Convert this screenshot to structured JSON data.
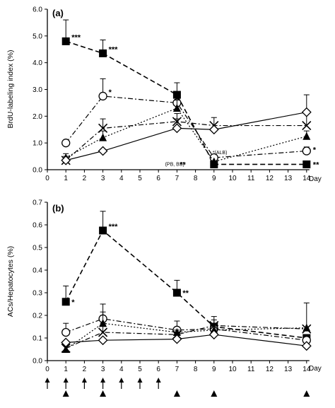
{
  "chart_data": [
    {
      "type": "line",
      "panel_label": "(a)",
      "ylabel": "BrdU-labeling index (%)",
      "xlabel": "Day",
      "ylim": [
        0,
        6.0
      ],
      "yticks": [
        "0.0",
        "1.0",
        "2.0",
        "3.0",
        "4.0",
        "5.0",
        "6.0"
      ],
      "xlim": [
        0,
        14
      ],
      "xticks": [
        "0",
        "1",
        "2",
        "3",
        "4",
        "5",
        "6",
        "7",
        "8",
        "9",
        "10",
        "11",
        "12",
        "13",
        "14"
      ],
      "grid": false,
      "series": [
        {
          "marker": "square",
          "linestyle": "dashed",
          "x": [
            1,
            3,
            7,
            9,
            14
          ],
          "y": [
            4.8,
            4.35,
            2.8,
            0.2,
            0.2
          ],
          "err": [
            0.8,
            0.5,
            0.45,
            0,
            0
          ]
        },
        {
          "marker": "circle",
          "linestyle": "dashdot",
          "x": [
            1,
            3,
            7,
            9,
            14
          ],
          "y": [
            1.0,
            2.75,
            2.5,
            0.45,
            0.7
          ],
          "err": [
            0,
            0.65,
            0,
            0,
            0.15
          ]
        },
        {
          "marker": "triangle",
          "linestyle": "dotted",
          "x": [
            1,
            3,
            7,
            9,
            14
          ],
          "y": [
            0.45,
            1.2,
            2.3,
            0.3,
            1.25
          ],
          "err": [
            0.15,
            0.25,
            0.3,
            0,
            0.2
          ]
        },
        {
          "marker": "cross",
          "linestyle": "dashdot",
          "x": [
            1,
            3,
            7,
            9,
            14
          ],
          "y": [
            0.35,
            1.55,
            1.8,
            1.65,
            1.65
          ],
          "err": [
            0.15,
            0.35,
            0.3,
            0.3,
            0.45
          ]
        },
        {
          "marker": "diamond",
          "linestyle": "solid",
          "x": [
            1,
            3,
            7,
            9,
            14
          ],
          "y": [
            0.35,
            0.7,
            1.55,
            1.5,
            2.15
          ],
          "err": [
            0,
            0,
            0.35,
            0,
            0.65
          ]
        }
      ],
      "annotations": [
        {
          "text": "***",
          "x": 1,
          "y": 4.8
        },
        {
          "text": "***",
          "x": 3,
          "y": 4.35
        },
        {
          "text": "*",
          "x": 3,
          "y": 2.75
        },
        {
          "text": "*(ALB)",
          "x": 9,
          "y": 0.45
        },
        {
          "text": "(PB, BS)",
          "x": 9,
          "y": 0.2
        },
        {
          "text": "**",
          "x": 9,
          "y": 0.2
        },
        {
          "text": "**",
          "x": 14,
          "y": 0.2
        },
        {
          "text": "*",
          "x": 14,
          "y": 0.7
        }
      ]
    },
    {
      "type": "line",
      "panel_label": "(b)",
      "ylabel": "ACs/Hepatocytes (%)",
      "xlabel": "Day",
      "ylim": [
        0,
        0.7
      ],
      "yticks": [
        "0.0",
        "0.1",
        "0.2",
        "0.3",
        "0.4",
        "0.5",
        "0.6",
        "0.7"
      ],
      "xlim": [
        0,
        14
      ],
      "xticks": [
        "0",
        "1",
        "2",
        "3",
        "4",
        "5",
        "6",
        "7",
        "8",
        "9",
        "10",
        "11",
        "12",
        "13",
        "14"
      ],
      "grid": false,
      "series": [
        {
          "marker": "square",
          "linestyle": "dashed",
          "x": [
            1,
            3,
            7,
            9,
            14
          ],
          "y": [
            0.26,
            0.575,
            0.3,
            0.15,
            0.1
          ],
          "err": [
            0.07,
            0.085,
            0.055,
            0,
            0
          ]
        },
        {
          "marker": "circle",
          "linestyle": "dashdot",
          "x": [
            1,
            3,
            7,
            9,
            14
          ],
          "y": [
            0.125,
            0.185,
            0.135,
            0.14,
            0.09
          ],
          "err": [
            0.04,
            0.065,
            0.04,
            0.04,
            0
          ]
        },
        {
          "marker": "triangle",
          "linestyle": "dotted",
          "x": [
            1,
            3,
            7,
            9,
            14
          ],
          "y": [
            0.05,
            0.165,
            0.125,
            0.135,
            0.145
          ],
          "err": [
            0,
            0.05,
            0,
            0.03,
            0
          ]
        },
        {
          "marker": "cross",
          "linestyle": "dashdot",
          "x": [
            1,
            3,
            7,
            9,
            14
          ],
          "y": [
            0.055,
            0.125,
            0.115,
            0.155,
            0.14
          ],
          "err": [
            0,
            0.04,
            0.02,
            0.04,
            0.115
          ]
        },
        {
          "marker": "diamond",
          "linestyle": "solid",
          "x": [
            1,
            3,
            7,
            9,
            14
          ],
          "y": [
            0.08,
            0.09,
            0.095,
            0.115,
            0.065
          ],
          "err": [
            0,
            0,
            0,
            0,
            0
          ]
        }
      ],
      "annotations": [
        {
          "text": "*",
          "x": 1,
          "y": 0.26
        },
        {
          "text": "***",
          "x": 3,
          "y": 0.575
        },
        {
          "text": "**",
          "x": 7,
          "y": 0.3
        }
      ]
    }
  ],
  "dosing_schedule": {
    "arrow_up_days": [
      0,
      1,
      2,
      3,
      4,
      5,
      6
    ],
    "triangle_days": [
      1,
      3,
      7,
      9,
      14
    ]
  }
}
